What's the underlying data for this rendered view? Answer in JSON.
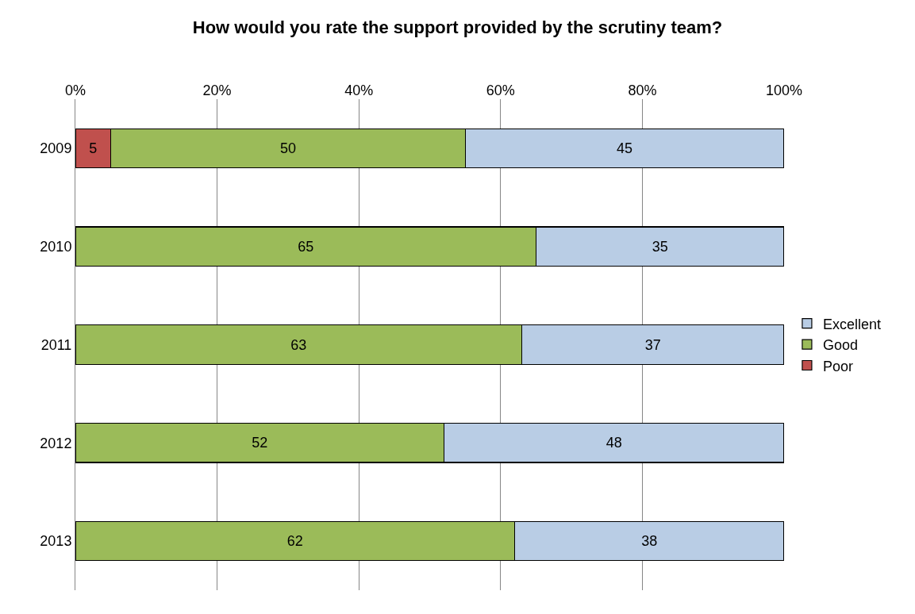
{
  "chart_data": {
    "type": "bar",
    "orientation": "horizontal",
    "stacked": true,
    "title": "How would you rate the support provided by the scrutiny team?",
    "categories": [
      "2009",
      "2010",
      "2011",
      "2012",
      "2013"
    ],
    "series": [
      {
        "name": "Poor",
        "color": "#c0504d",
        "values": [
          5,
          null,
          null,
          null,
          null
        ]
      },
      {
        "name": "Good",
        "color": "#9bbb59",
        "values": [
          50,
          65,
          63,
          52,
          62
        ]
      },
      {
        "name": "Excellent",
        "color": "#b9cde5",
        "values": [
          45,
          35,
          37,
          48,
          38
        ]
      }
    ],
    "xlim": [
      0,
      100
    ],
    "xticks": [
      {
        "value": 0,
        "label": "0%"
      },
      {
        "value": 20,
        "label": "20%"
      },
      {
        "value": 40,
        "label": "40%"
      },
      {
        "value": 60,
        "label": "60%"
      },
      {
        "value": 80,
        "label": "80%"
      },
      {
        "value": 100,
        "label": "100%"
      }
    ],
    "data_labels": true,
    "grid": "x",
    "legend": "right"
  }
}
